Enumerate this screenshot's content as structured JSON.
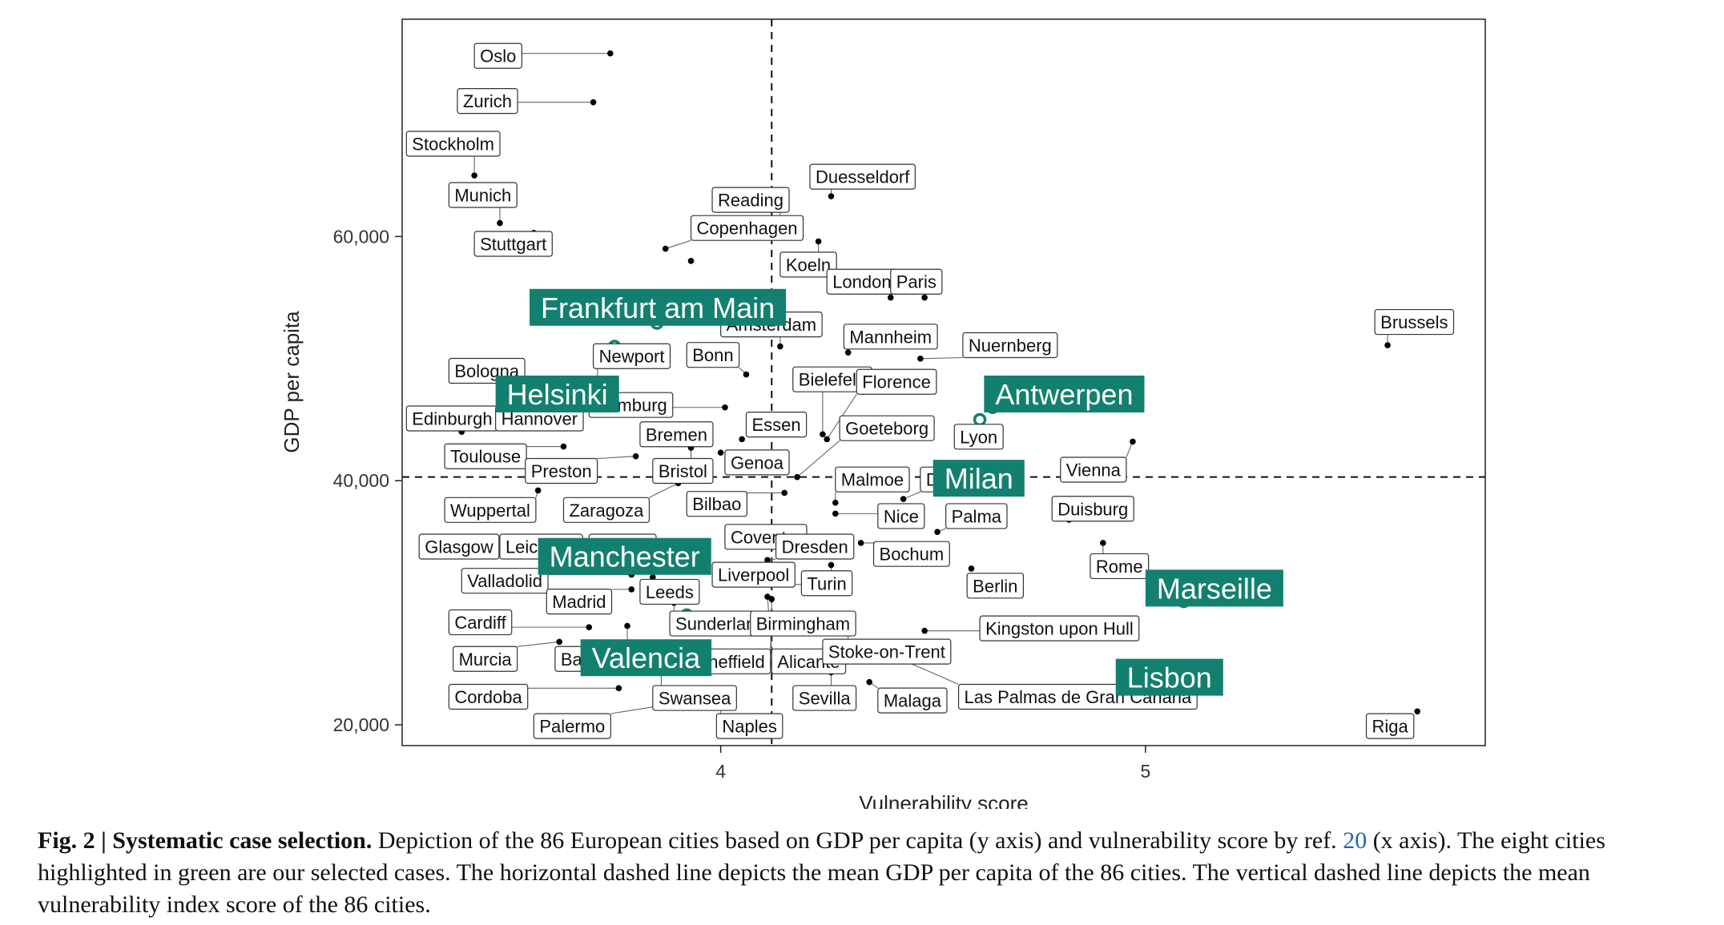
{
  "chart_data": {
    "type": "scatter",
    "xlabel": "Vulnerability score",
    "ylabel": "GDP per capita",
    "xlim": [
      3.25,
      5.8
    ],
    "ylim": [
      18300,
      77800
    ],
    "x_ticks": [
      {
        "value": 4,
        "label": "4"
      },
      {
        "value": 5,
        "label": "5"
      }
    ],
    "y_ticks": [
      {
        "value": 20000,
        "label": "20,000"
      },
      {
        "value": 40000,
        "label": "40,000"
      },
      {
        "value": 60000,
        "label": "60,000"
      }
    ],
    "mean_x": 4.12,
    "mean_y": 40300,
    "highlight_color": "#13806f",
    "point_color": "#000000",
    "selected": [
      {
        "name": "Frankfurt am Main",
        "x": 3.85,
        "y": 52900
      },
      {
        "name": "Helsinki",
        "x": 3.75,
        "y": 51000
      },
      {
        "name": "Antwerpen",
        "x": 4.64,
        "y": 46000
      },
      {
        "name": "Milan",
        "x": 4.61,
        "y": 45000
      },
      {
        "name": "Manchester",
        "x": 3.72,
        "y": 34500
      },
      {
        "name": "Marseille",
        "x": 5.09,
        "y": 30100
      },
      {
        "name": "Valencia",
        "x": 3.92,
        "y": 29000
      },
      {
        "name": "Lisbon",
        "x": 4.97,
        "y": 23000
      }
    ],
    "points": [
      {
        "name": "Oslo",
        "x": 3.74,
        "y": 75000
      },
      {
        "name": "Zurich",
        "x": 3.7,
        "y": 71000
      },
      {
        "name": "Stockholm",
        "x": 3.42,
        "y": 65000
      },
      {
        "name": "Munich",
        "x": 3.48,
        "y": 61100
      },
      {
        "name": "Stuttgart",
        "x": 3.56,
        "y": 60300
      },
      {
        "name": "Copenhagen",
        "x": 3.87,
        "y": 59000
      },
      {
        "name": "Reading",
        "x": 4.14,
        "y": 61000
      },
      {
        "name": "Duesseldorf",
        "x": 4.26,
        "y": 63300
      },
      {
        "name": "Koeln",
        "x": 4.23,
        "y": 59600
      },
      {
        "name": "London",
        "x": 4.4,
        "y": 55000
      },
      {
        "name": "Paris",
        "x": 4.48,
        "y": 55000
      },
      {
        "name": "Berlin",
        "x": 3.93,
        "y": 58000
      },
      {
        "name": "Amsterdam",
        "x": 4.14,
        "y": 51000
      },
      {
        "name": "Mannheim",
        "x": 4.3,
        "y": 50500
      },
      {
        "name": "Nuernberg",
        "x": 4.47,
        "y": 50000
      },
      {
        "name": "Newport",
        "x": 3.71,
        "y": 47000
      },
      {
        "name": "Bonn",
        "x": 4.06,
        "y": 48700
      },
      {
        "name": "Bologna",
        "x": 3.55,
        "y": 47500
      },
      {
        "name": "Bielefeld",
        "x": 4.24,
        "y": 43800
      },
      {
        "name": "Florence",
        "x": 4.25,
        "y": 43400
      },
      {
        "name": "Edinburgh",
        "x": 3.39,
        "y": 44000
      },
      {
        "name": "Hannover",
        "x": 3.64,
        "y": 44800
      },
      {
        "name": "Hamburg",
        "x": 4.01,
        "y": 46000
      },
      {
        "name": "Essen",
        "x": 4.05,
        "y": 43400
      },
      {
        "name": "Goeteborg",
        "x": 4.18,
        "y": 40300
      },
      {
        "name": "Lyon",
        "x": 4.56,
        "y": 43500
      },
      {
        "name": "Bremen",
        "x": 3.88,
        "y": 43000
      },
      {
        "name": "Toulouse",
        "x": 3.63,
        "y": 42800
      },
      {
        "name": "Preston",
        "x": 3.8,
        "y": 42000
      },
      {
        "name": "Bristol",
        "x": 3.93,
        "y": 42700
      },
      {
        "name": "Genoa",
        "x": 4.0,
        "y": 42300
      },
      {
        "name": "Malmoe",
        "x": 4.27,
        "y": 38200
      },
      {
        "name": "Dortmund",
        "x": 4.43,
        "y": 38500
      },
      {
        "name": "Vienna",
        "x": 4.97,
        "y": 43200
      },
      {
        "name": "Brussels",
        "x": 5.57,
        "y": 51100
      },
      {
        "name": "Wuppertal",
        "x": 3.57,
        "y": 39200
      },
      {
        "name": "Zaragoza",
        "x": 3.9,
        "y": 39800
      },
      {
        "name": "Bilbao",
        "x": 4.15,
        "y": 39000
      },
      {
        "name": "Nice",
        "x": 4.27,
        "y": 37300
      },
      {
        "name": "Palma",
        "x": 4.51,
        "y": 35800
      },
      {
        "name": "Duisburg",
        "x": 4.82,
        "y": 36800
      },
      {
        "name": "Glasgow",
        "x": 3.51,
        "y": 34500
      },
      {
        "name": "Leicester",
        "x": 3.6,
        "y": 34900
      },
      {
        "name": "Leipzig",
        "x": 3.96,
        "y": 34600
      },
      {
        "name": "Coventry",
        "x": 4.1,
        "y": 34800
      },
      {
        "name": "Dresden",
        "x": 4.11,
        "y": 33500
      },
      {
        "name": "Bochum",
        "x": 4.33,
        "y": 34900
      },
      {
        "name": "Rome",
        "x": 4.9,
        "y": 34900
      },
      {
        "name": "Valladolid",
        "x": 3.79,
        "y": 32300
      },
      {
        "name": "Liverpool",
        "x": 4.21,
        "y": 31500
      },
      {
        "name": "Turin",
        "x": 4.26,
        "y": 33100
      },
      {
        "name": "Berlin",
        "x": 4.59,
        "y": 32800
      },
      {
        "name": "Madrid",
        "x": 3.79,
        "y": 31100
      },
      {
        "name": "Leeds",
        "x": 3.84,
        "y": 32100
      },
      {
        "name": "Cardiff",
        "x": 3.69,
        "y": 28000
      },
      {
        "name": "Sunderland",
        "x": 3.89,
        "y": 30000
      },
      {
        "name": "Birmingham",
        "x": 4.12,
        "y": 30300
      },
      {
        "name": "Kingston upon Hull",
        "x": 4.48,
        "y": 27700
      },
      {
        "name": "Murcia",
        "x": 3.62,
        "y": 26800
      },
      {
        "name": "Barcelona",
        "x": 3.78,
        "y": 28100
      },
      {
        "name": "Sheffield",
        "x": 4.12,
        "y": 29000
      },
      {
        "name": "Alicante",
        "x": 4.11,
        "y": 30500
      },
      {
        "name": "Stoke-on-Trent",
        "x": 4.3,
        "y": 27800
      },
      {
        "name": "Las Palmas de Gran Canaria",
        "x": 4.37,
        "y": 26200
      },
      {
        "name": "Cordoba",
        "x": 3.76,
        "y": 23000
      },
      {
        "name": "Swansea",
        "x": 3.86,
        "y": 25100
      },
      {
        "name": "Sevilla",
        "x": 4.26,
        "y": 24300
      },
      {
        "name": "Malaga",
        "x": 4.35,
        "y": 23500
      },
      {
        "name": "Palermo",
        "x": 3.9,
        "y": 21800
      },
      {
        "name": "Naples",
        "x": 4.0,
        "y": 22200
      },
      {
        "name": "Riga",
        "x": 5.64,
        "y": 21100
      }
    ],
    "labels": [
      {
        "text": "Oslo",
        "point": 0,
        "lx": 3.42,
        "ly": 74800
      },
      {
        "text": "Zurich",
        "point": 1,
        "lx": 3.38,
        "ly": 71100
      },
      {
        "text": "Stockholm",
        "point": 2,
        "lx": 3.26,
        "ly": 67600
      },
      {
        "text": "Munich",
        "point": 3,
        "lx": 3.36,
        "ly": 63400
      },
      {
        "text": "Stuttgart",
        "point": 4,
        "lx": 3.42,
        "ly": 59400
      },
      {
        "text": "Copenhagen",
        "point": 5,
        "lx": 3.93,
        "ly": 60700
      },
      {
        "text": "Reading",
        "point": 6,
        "lx": 3.98,
        "ly": 63000
      },
      {
        "text": "Duesseldorf",
        "point": 7,
        "lx": 4.21,
        "ly": 64900
      },
      {
        "text": "Koeln",
        "point": 8,
        "lx": 4.14,
        "ly": 57700
      },
      {
        "text": "London",
        "point": 9,
        "lx": 4.25,
        "ly": 56300
      },
      {
        "text": "Paris",
        "point": 10,
        "lx": 4.4,
        "ly": 56300
      },
      {
        "text": "Amsterdam",
        "point": 12,
        "lx": 4.0,
        "ly": 52800
      },
      {
        "text": "Mannheim",
        "point": 13,
        "lx": 4.29,
        "ly": 51800
      },
      {
        "text": "Nuernberg",
        "point": 14,
        "lx": 4.57,
        "ly": 51100
      },
      {
        "text": "Newport",
        "point": 15,
        "lx": 3.7,
        "ly": 50200
      },
      {
        "text": "Bonn",
        "point": 16,
        "lx": 3.92,
        "ly": 50300
      },
      {
        "text": "Bologna",
        "point": 17,
        "lx": 3.36,
        "ly": 49000
      },
      {
        "text": "Bielefeld",
        "point": 18,
        "lx": 4.17,
        "ly": 48300
      },
      {
        "text": "Florence",
        "point": 19,
        "lx": 4.32,
        "ly": 48100
      },
      {
        "text": "Edinburgh",
        "point": 20,
        "lx": 3.26,
        "ly": 45100
      },
      {
        "text": "Hannover",
        "point": 21,
        "lx": 3.47,
        "ly": 45100
      },
      {
        "text": "Hamburg",
        "point": 22,
        "lx": 3.69,
        "ly": 46200
      },
      {
        "text": "Essen",
        "point": 23,
        "lx": 4.06,
        "ly": 44600
      },
      {
        "text": "Goeteborg",
        "point": 24,
        "lx": 4.28,
        "ly": 44300
      },
      {
        "text": "Lyon",
        "point": 25,
        "lx": 4.55,
        "ly": 43600
      },
      {
        "text": "Bremen",
        "point": 26,
        "lx": 3.81,
        "ly": 43800
      },
      {
        "text": "Toulouse",
        "point": 27,
        "lx": 3.35,
        "ly": 42000
      },
      {
        "text": "Preston",
        "point": 28,
        "lx": 3.54,
        "ly": 40800
      },
      {
        "text": "Bristol",
        "point": 29,
        "lx": 3.84,
        "ly": 40800
      },
      {
        "text": "Genoa",
        "point": 30,
        "lx": 4.01,
        "ly": 41500
      },
      {
        "text": "Malmoe",
        "point": 31,
        "lx": 4.27,
        "ly": 40100
      },
      {
        "text": "Dortmund",
        "point": 32,
        "lx": 4.47,
        "ly": 40100
      },
      {
        "text": "Vienna",
        "point": 33,
        "lx": 4.8,
        "ly": 40900
      },
      {
        "text": "Brussels",
        "point": 34,
        "lx": 5.54,
        "ly": 53000
      },
      {
        "text": "Wuppertal",
        "point": 35,
        "lx": 3.35,
        "ly": 37600
      },
      {
        "text": "Zaragoza",
        "point": 36,
        "lx": 3.63,
        "ly": 37600
      },
      {
        "text": "Bilbao",
        "point": 37,
        "lx": 3.92,
        "ly": 38100
      },
      {
        "text": "Nice",
        "point": 38,
        "lx": 4.37,
        "ly": 37100
      },
      {
        "text": "Palma",
        "point": 39,
        "lx": 4.53,
        "ly": 37100
      },
      {
        "text": "Duisburg",
        "point": 40,
        "lx": 4.78,
        "ly": 37700
      },
      {
        "text": "Glasgow",
        "point": 41,
        "lx": 3.29,
        "ly": 34600
      },
      {
        "text": "Leicester",
        "point": 42,
        "lx": 3.48,
        "ly": 34600
      },
      {
        "text": "Leipzig",
        "point": 43,
        "lx": 3.69,
        "ly": 34600
      },
      {
        "text": "Coventry",
        "point": 44,
        "lx": 4.01,
        "ly": 35400
      },
      {
        "text": "Dresden",
        "point": 45,
        "lx": 4.13,
        "ly": 34600
      },
      {
        "text": "Bochum",
        "point": 46,
        "lx": 4.36,
        "ly": 34000
      },
      {
        "text": "Rome",
        "point": 47,
        "lx": 4.87,
        "ly": 33000
      },
      {
        "text": "Valladolid",
        "point": 48,
        "lx": 3.39,
        "ly": 31800
      },
      {
        "text": "Liverpool",
        "point": 49,
        "lx": 3.98,
        "ly": 32300
      },
      {
        "text": "Turin",
        "point": 50,
        "lx": 4.19,
        "ly": 31600
      },
      {
        "text": "Berlin",
        "point": 51,
        "lx": 4.58,
        "ly": 31400
      },
      {
        "text": "Madrid",
        "point": 52,
        "lx": 3.59,
        "ly": 30100
      },
      {
        "text": "Leeds",
        "point": 53,
        "lx": 3.81,
        "ly": 30900
      },
      {
        "text": "Cardiff",
        "point": 54,
        "lx": 3.36,
        "ly": 28400
      },
      {
        "text": "Sunderland",
        "point": 55,
        "lx": 3.88,
        "ly": 28300
      },
      {
        "text": "Birmingham",
        "point": 56,
        "lx": 4.07,
        "ly": 28300
      },
      {
        "text": "Kingston upon Hull",
        "point": 57,
        "lx": 4.61,
        "ly": 27900
      },
      {
        "text": "Murcia",
        "point": 58,
        "lx": 3.37,
        "ly": 25400
      },
      {
        "text": "Barcelona",
        "point": 59,
        "lx": 3.61,
        "ly": 25400
      },
      {
        "text": "Sheffield",
        "point": 60,
        "lx": 3.93,
        "ly": 25200
      },
      {
        "text": "Alicante",
        "point": 61,
        "lx": 4.12,
        "ly": 25200
      },
      {
        "text": "Stoke-on-Trent",
        "point": 62,
        "lx": 4.24,
        "ly": 26000
      },
      {
        "text": "Las Palmas de Gran Canaria",
        "point": 63,
        "lx": 4.56,
        "ly": 22300
      },
      {
        "text": "Cordoba",
        "point": 64,
        "lx": 3.36,
        "ly": 22300
      },
      {
        "text": "Swansea",
        "point": 65,
        "lx": 3.84,
        "ly": 22200
      },
      {
        "text": "Sevilla",
        "point": 66,
        "lx": 4.17,
        "ly": 22200
      },
      {
        "text": "Malaga",
        "point": 67,
        "lx": 4.37,
        "ly": 22000
      },
      {
        "text": "Palermo",
        "point": 68,
        "lx": 3.56,
        "ly": 19900
      },
      {
        "text": "Naples",
        "point": 69,
        "lx": 3.99,
        "ly": 19900
      },
      {
        "text": "Riga",
        "point": 70,
        "lx": 5.52,
        "ly": 19900
      }
    ],
    "highlight_labels": [
      {
        "text": "Frankfurt am Main",
        "lx": 3.55,
        "ly": 54200
      },
      {
        "text": "Helsinki",
        "lx": 3.47,
        "ly": 47100
      },
      {
        "text": "Antwerpen",
        "lx": 4.62,
        "ly": 47100
      },
      {
        "text": "Milan",
        "lx": 4.5,
        "ly": 40200
      },
      {
        "text": "Manchester",
        "lx": 3.57,
        "ly": 33800
      },
      {
        "text": "Marseille",
        "lx": 5.0,
        "ly": 31200
      },
      {
        "text": "Valencia",
        "lx": 3.67,
        "ly": 25500
      },
      {
        "text": "Lisbon",
        "lx": 4.93,
        "ly": 23900
      }
    ]
  },
  "caption": {
    "lead": "Fig. 2 | Systematic case selection.",
    "body_1": " Depiction of the 86 European cities based on GDP per capita (y axis) and vulnerability score by ref. ",
    "ref": "20",
    "body_2": " (x axis). The eight cities highlighted in green are our selected cases. The horizontal dashed line depicts the mean GDP per capita of the 86 cities. The vertical dashed line depicts the mean vulnerability index score of the 86 cities."
  }
}
